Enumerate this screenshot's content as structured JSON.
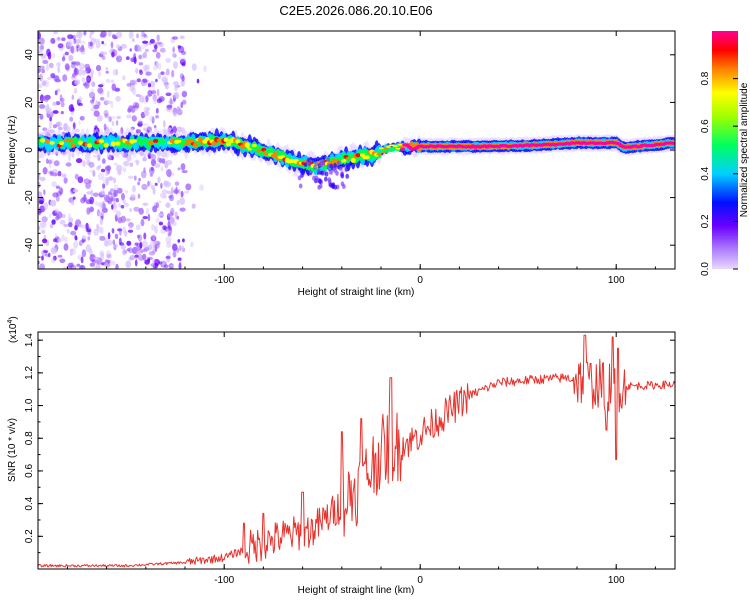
{
  "title": "C2E5.2026.086.20.10.E06",
  "colors": {
    "snr_line": "#e8322c",
    "axis": "#000000",
    "background": "#ffffff"
  },
  "chart_data": [
    {
      "type": "heatmap",
      "name": "spectrogram",
      "xlabel": "Height of straight line (km)",
      "ylabel": "Frequency (Hz)",
      "xlim": [
        -195,
        130
      ],
      "ylim": [
        -50,
        50
      ],
      "xticks": [
        -100,
        0,
        100
      ],
      "yticks": [
        -40,
        -20,
        0,
        20,
        40
      ],
      "colorbar": {
        "label": "Normalized spectral amplitude",
        "range": [
          0,
          1
        ],
        "ticks": [
          0.0,
          0.2,
          0.4,
          0.6,
          0.8
        ],
        "tick_labels": [
          "0.0",
          "0.2",
          "0.4",
          "0.6",
          "0.8"
        ],
        "colormap": [
          "#e0c8ff",
          "#7000ff",
          "#0000ff",
          "#00e0ff",
          "#00ff40",
          "#ffff00",
          "#ff8000",
          "#ff0000",
          "#ff00a0"
        ]
      },
      "noise_region_x": [
        -195,
        -120
      ],
      "ridge": [
        {
          "x": -195,
          "y": 3
        },
        {
          "x": -160,
          "y": 3
        },
        {
          "x": -120,
          "y": 3
        },
        {
          "x": -100,
          "y": 4
        },
        {
          "x": -85,
          "y": 1
        },
        {
          "x": -70,
          "y": -3
        },
        {
          "x": -55,
          "y": -7
        },
        {
          "x": -40,
          "y": -4
        },
        {
          "x": -25,
          "y": -2
        },
        {
          "x": -15,
          "y": 1
        },
        {
          "x": 0,
          "y": 1.5
        },
        {
          "x": 30,
          "y": 1.5
        },
        {
          "x": 60,
          "y": 2
        },
        {
          "x": 80,
          "y": 3
        },
        {
          "x": 100,
          "y": 3
        },
        {
          "x": 104,
          "y": 1
        },
        {
          "x": 130,
          "y": 3
        }
      ]
    },
    {
      "type": "line",
      "name": "snr",
      "xlabel": "Height of straight line (km)",
      "ylabel": "SNR (10 * v/v)",
      "y_multiplier": "(x10",
      "y_multiplier_exp": "4",
      "y_multiplier_close": ")",
      "xlim": [
        -195,
        130
      ],
      "ylim": [
        0,
        1.45
      ],
      "xticks": [
        -100,
        0,
        100
      ],
      "yticks": [
        0.2,
        0.4,
        0.6,
        0.8,
        1.0,
        1.2,
        1.4
      ],
      "trend": [
        {
          "x": -195,
          "y": 0.02
        },
        {
          "x": -150,
          "y": 0.02
        },
        {
          "x": -120,
          "y": 0.04
        },
        {
          "x": -100,
          "y": 0.07
        },
        {
          "x": -85,
          "y": 0.14
        },
        {
          "x": -70,
          "y": 0.2
        },
        {
          "x": -55,
          "y": 0.24
        },
        {
          "x": -45,
          "y": 0.34
        },
        {
          "x": -30,
          "y": 0.52
        },
        {
          "x": -20,
          "y": 0.72
        },
        {
          "x": -5,
          "y": 0.78
        },
        {
          "x": 10,
          "y": 0.92
        },
        {
          "x": 25,
          "y": 1.06
        },
        {
          "x": 40,
          "y": 1.14
        },
        {
          "x": 60,
          "y": 1.16
        },
        {
          "x": 75,
          "y": 1.17
        },
        {
          "x": 95,
          "y": 1.12
        },
        {
          "x": 110,
          "y": 1.12
        },
        {
          "x": 130,
          "y": 1.13
        }
      ],
      "notable_peaks": [
        {
          "x": -90,
          "y": 0.28
        },
        {
          "x": -80,
          "y": 0.34
        },
        {
          "x": -60,
          "y": 0.47
        },
        {
          "x": -40,
          "y": 0.84
        },
        {
          "x": -30,
          "y": 0.92
        },
        {
          "x": -15,
          "y": 1.17
        },
        {
          "x": 84,
          "y": 1.43
        },
        {
          "x": 98,
          "y": 1.42
        },
        {
          "x": 101,
          "y": 1.35
        }
      ],
      "notable_dips": [
        {
          "x": 95,
          "y": 0.85
        },
        {
          "x": 100,
          "y": 0.67
        }
      ]
    }
  ]
}
